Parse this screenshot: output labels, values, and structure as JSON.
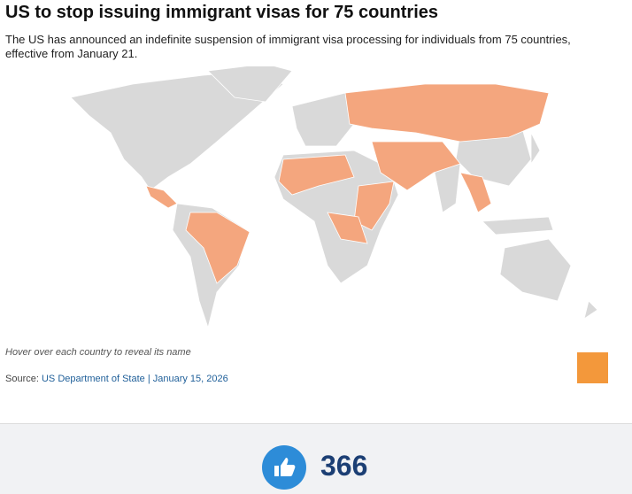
{
  "header": {
    "title": "US to stop issuing immigrant visas for 75 countries",
    "subtitle": "The US has announced an indefinite suspension of immigrant visa processing for individuals from 75 countries, effective from January 21."
  },
  "map": {
    "note": "Hover over each country to reveal its name"
  },
  "footer": {
    "source_label": "Source:",
    "source_link": "US Department of State | January 15, 2026"
  },
  "reactions": {
    "likes": 366
  }
}
